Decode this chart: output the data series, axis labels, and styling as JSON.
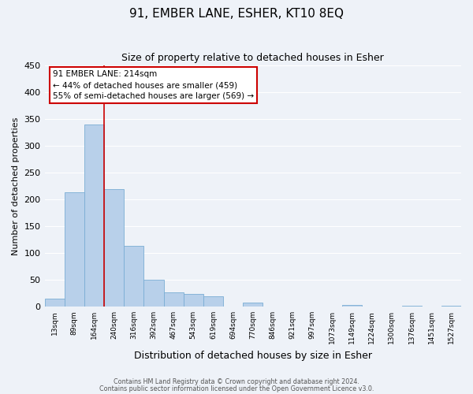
{
  "title": "91, EMBER LANE, ESHER, KT10 8EQ",
  "subtitle": "Size of property relative to detached houses in Esher",
  "xlabel": "Distribution of detached houses by size in Esher",
  "ylabel": "Number of detached properties",
  "categories": [
    "13sqm",
    "89sqm",
    "164sqm",
    "240sqm",
    "316sqm",
    "392sqm",
    "467sqm",
    "543sqm",
    "619sqm",
    "694sqm",
    "770sqm",
    "846sqm",
    "921sqm",
    "997sqm",
    "1073sqm",
    "1149sqm",
    "1224sqm",
    "1300sqm",
    "1376sqm",
    "1451sqm",
    "1527sqm"
  ],
  "values": [
    15,
    213,
    340,
    220,
    113,
    50,
    26,
    24,
    19,
    0,
    8,
    0,
    0,
    0,
    0,
    3,
    0,
    0,
    2,
    0,
    2
  ],
  "bar_color": "#b8d0ea",
  "bar_edge_color": "#7aadd4",
  "vline_x": 2.5,
  "vline_color": "#cc0000",
  "annotation_title": "91 EMBER LANE: 214sqm",
  "annotation_line1": "← 44% of detached houses are smaller (459)",
  "annotation_line2": "55% of semi-detached houses are larger (569) →",
  "annotation_box_color": "#cc0000",
  "ylim": [
    0,
    450
  ],
  "yticks": [
    0,
    50,
    100,
    150,
    200,
    250,
    300,
    350,
    400,
    450
  ],
  "title_fontsize": 11,
  "subtitle_fontsize": 9,
  "xlabel_fontsize": 9,
  "ylabel_fontsize": 8,
  "footer1": "Contains HM Land Registry data © Crown copyright and database right 2024.",
  "footer2": "Contains public sector information licensed under the Open Government Licence v3.0.",
  "bg_color": "#eef2f8",
  "plot_bg_color": "#eef2f8",
  "grid_color": "#ffffff",
  "annotation_fontsize": 7.5
}
